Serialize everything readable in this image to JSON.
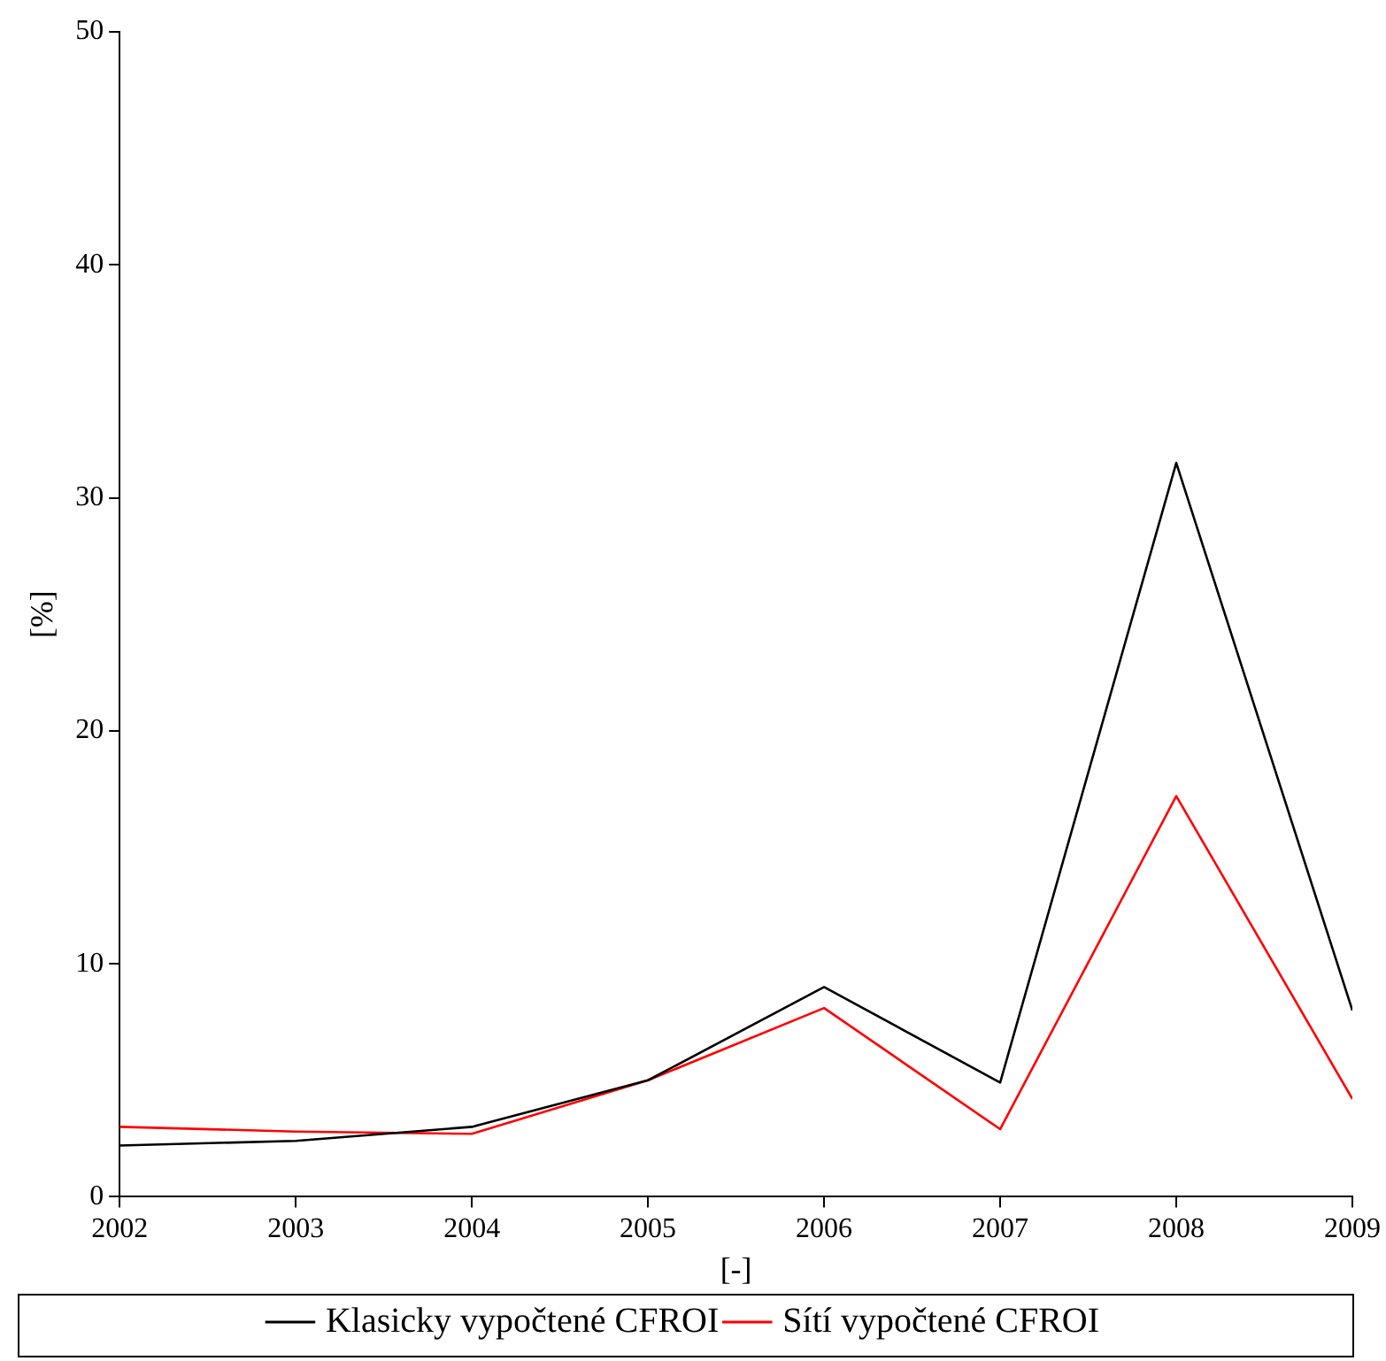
{
  "chart_data": {
    "type": "line",
    "xlabel": "[-]",
    "ylabel": "[%]",
    "x": [
      2002,
      2003,
      2004,
      2005,
      2006,
      2007,
      2008,
      2009
    ],
    "series": [
      {
        "name": "Klasicky vypočtené CFROI",
        "color": "#000000",
        "values": [
          2.2,
          2.4,
          3.0,
          5.0,
          9.0,
          4.9,
          31.5,
          8.0
        ]
      },
      {
        "name": "Sítí vypočtené CFROI",
        "color": "#ff0000",
        "values": [
          3.0,
          2.8,
          2.7,
          5.0,
          8.1,
          2.9,
          17.2,
          4.2
        ]
      }
    ],
    "xlim": [
      2002,
      2009
    ],
    "xticks": [
      2002,
      2003,
      2004,
      2005,
      2006,
      2007,
      2008,
      2009
    ],
    "ylim": [
      0,
      50
    ],
    "yticks": [
      0,
      10,
      20,
      30,
      40,
      50
    ],
    "grid": false,
    "legend": "bottom",
    "marker": "none",
    "line_style": "solid"
  }
}
